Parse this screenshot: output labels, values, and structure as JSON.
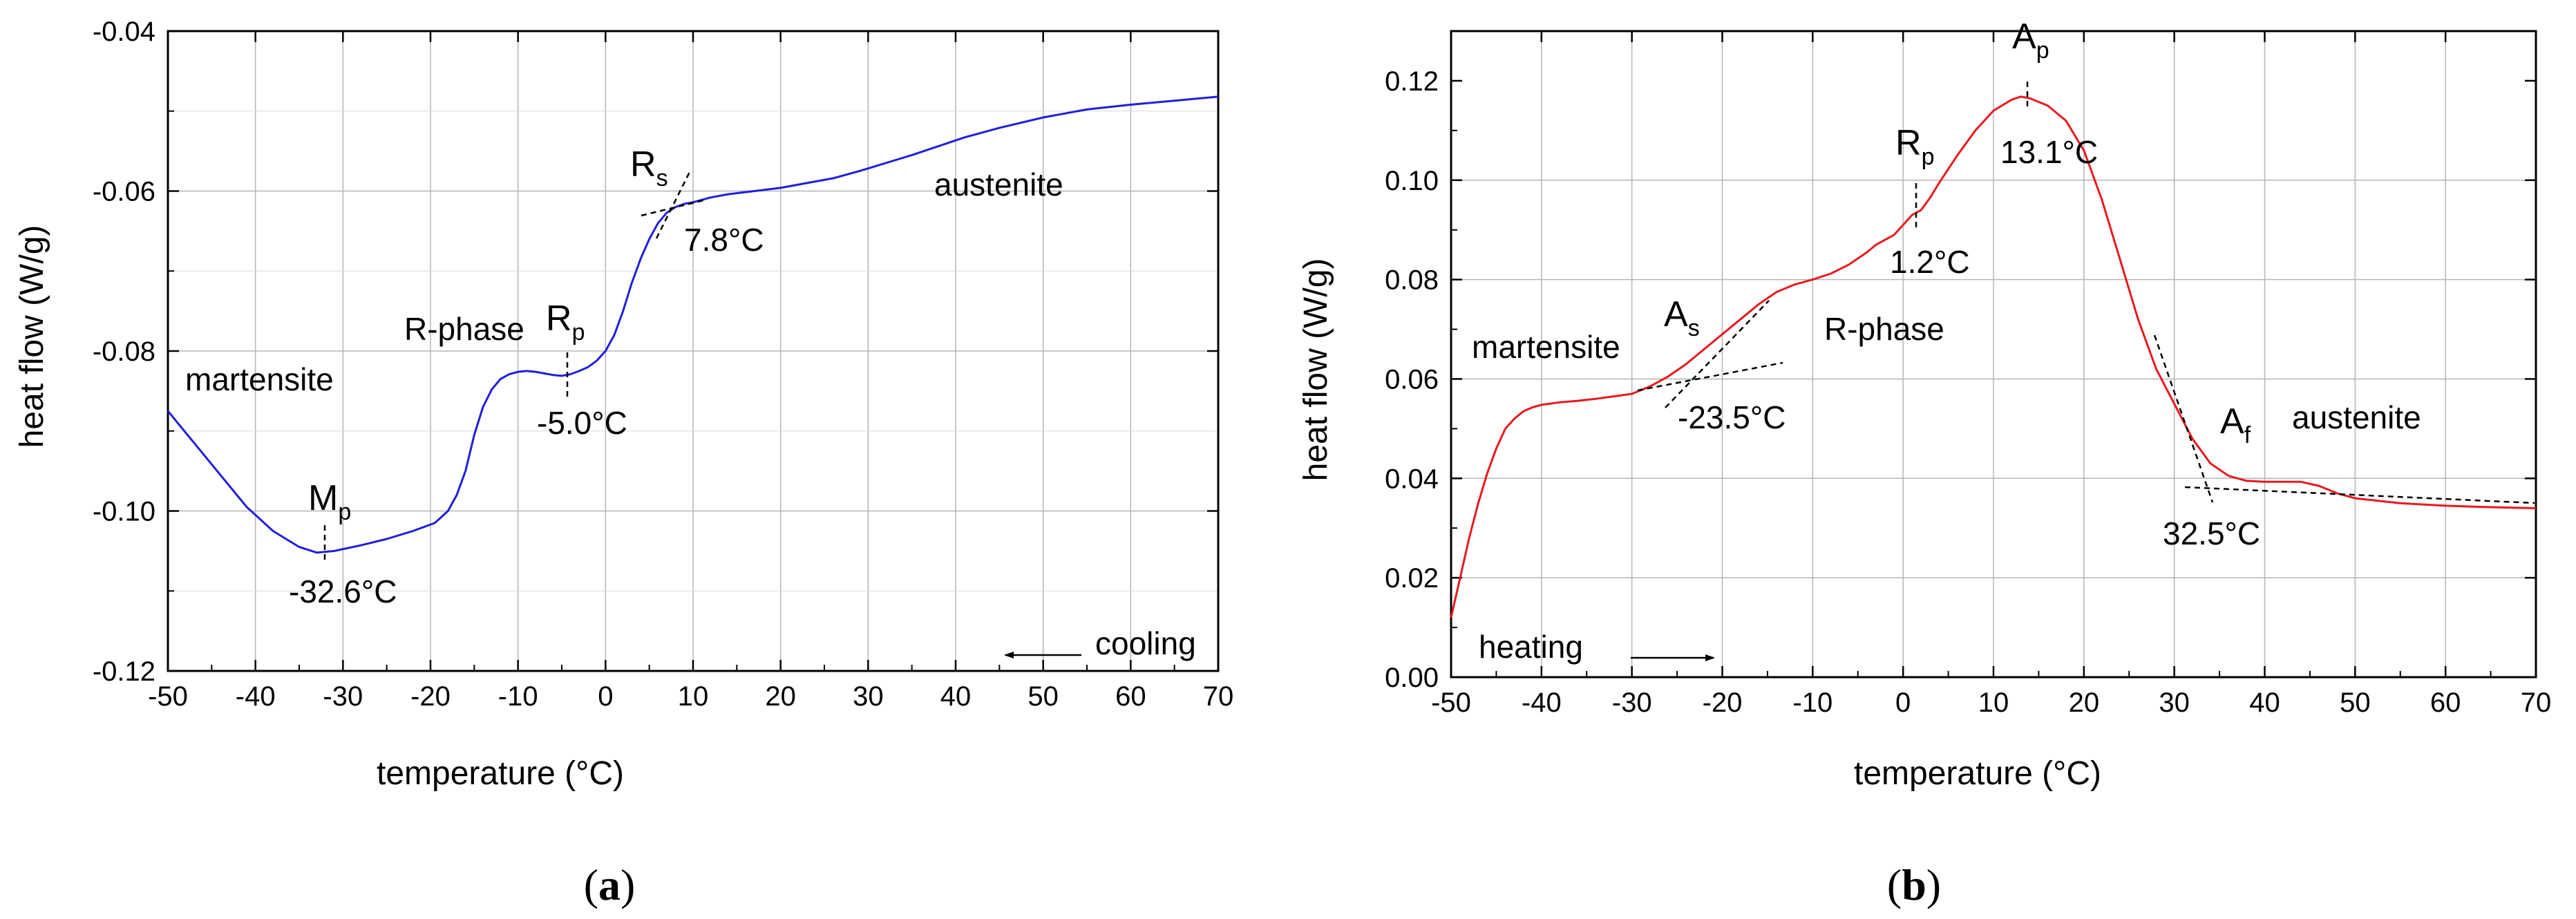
{
  "chart_data": [
    {
      "id": "a",
      "type": "line",
      "panel_label_open": "(",
      "panel_label_letter": "a",
      "panel_label_close": ")",
      "xlabel": "temperature (°C)",
      "ylabel": "heat flow (W/g)",
      "xlim": [
        -50,
        70
      ],
      "ylim": [
        -0.12,
        -0.04
      ],
      "xticks": [
        -50,
        -40,
        -30,
        -20,
        -10,
        0,
        10,
        20,
        30,
        40,
        50,
        60,
        70
      ],
      "xtick_labels": [
        "-50",
        "-40",
        "-30",
        "-20",
        "-10",
        "0",
        "10",
        "20",
        "30",
        "40",
        "50",
        "60",
        "70"
      ],
      "yticks": [
        -0.12,
        -0.1,
        -0.08,
        -0.06,
        -0.04
      ],
      "ytick_labels": [
        "-0.12",
        "-0.10",
        "-0.08",
        "-0.06",
        "-0.04"
      ],
      "grid": true,
      "series": [
        {
          "name": "cooling curve",
          "color": "#1f1fdc",
          "x": [
            -50,
            -47,
            -44,
            -41,
            -38,
            -35,
            -33,
            -31,
            -28,
            -25,
            -22,
            -19.5,
            -18,
            -17,
            -16,
            -15,
            -14,
            -13,
            -12,
            -11,
            -10,
            -9,
            -8,
            -7,
            -6,
            -5,
            -4,
            -3,
            -2,
            -1,
            0,
            1,
            2,
            3,
            4,
            5,
            6,
            7,
            8,
            9,
            10,
            12,
            14,
            17,
            20,
            23,
            26,
            29,
            32,
            35,
            38,
            41,
            45,
            50,
            55,
            60,
            65,
            70
          ],
          "y": [
            -0.0875,
            -0.0915,
            -0.0955,
            -0.0995,
            -0.1025,
            -0.1045,
            -0.1052,
            -0.105,
            -0.1043,
            -0.1035,
            -0.1025,
            -0.1015,
            -0.1,
            -0.098,
            -0.095,
            -0.0905,
            -0.087,
            -0.0848,
            -0.0835,
            -0.0829,
            -0.0826,
            -0.0825,
            -0.0826,
            -0.0828,
            -0.083,
            -0.0831,
            -0.0829,
            -0.0825,
            -0.082,
            -0.0812,
            -0.08,
            -0.078,
            -0.075,
            -0.0715,
            -0.0685,
            -0.066,
            -0.064,
            -0.0627,
            -0.062,
            -0.0616,
            -0.0614,
            -0.0608,
            -0.0604,
            -0.06,
            -0.0596,
            -0.059,
            -0.0584,
            -0.0575,
            -0.0565,
            -0.0555,
            -0.0544,
            -0.0533,
            -0.0521,
            -0.0508,
            -0.0498,
            -0.0492,
            -0.0487,
            -0.0482
          ]
        }
      ],
      "annotations": {
        "martensite": "martensite",
        "r_phase": "R-phase",
        "austenite": "austenite",
        "mp_main": "M",
        "mp_sub": "p",
        "mp_temp": "-32.6°C",
        "rp_main": "R",
        "rp_sub": "p",
        "rp_temp": "-5.0°C",
        "rs_main": "R",
        "rs_sub": "s",
        "rs_temp": "7.8°C",
        "cooling": "cooling"
      }
    },
    {
      "id": "b",
      "type": "line",
      "panel_label_open": "(",
      "panel_label_letter": "b",
      "panel_label_close": ")",
      "xlabel": "temperature (°C)",
      "ylabel": "heat flow (W/g)",
      "xlim": [
        -50,
        70
      ],
      "ylim": [
        0.0,
        0.13
      ],
      "xticks": [
        -50,
        -40,
        -30,
        -20,
        -10,
        0,
        10,
        20,
        30,
        40,
        50,
        60,
        70
      ],
      "xtick_labels": [
        "-50",
        "-40",
        "-30",
        "-20",
        "-10",
        "0",
        "10",
        "20",
        "30",
        "40",
        "50",
        "60",
        "70"
      ],
      "yticks": [
        0.0,
        0.02,
        0.04,
        0.06,
        0.08,
        0.1,
        0.12
      ],
      "ytick_labels": [
        "0.00",
        "0.02",
        "0.04",
        "0.06",
        "0.08",
        "0.10",
        "0.12"
      ],
      "grid": true,
      "series": [
        {
          "name": "heating curve",
          "color": "#e8191e",
          "x": [
            -50,
            -49,
            -48,
            -47,
            -46,
            -45,
            -44,
            -43,
            -42,
            -41,
            -40,
            -38,
            -36,
            -34,
            -32,
            -30,
            -28,
            -26,
            -24,
            -22,
            -20,
            -18,
            -16,
            -14,
            -12,
            -10,
            -8,
            -6,
            -4,
            -3,
            -2,
            -1,
            0,
            1,
            2,
            3,
            4,
            6,
            8,
            10,
            12,
            13,
            14,
            16,
            18,
            20,
            22,
            24,
            26,
            28,
            30,
            32,
            34,
            36,
            38,
            40,
            42,
            44,
            46,
            48,
            50,
            55,
            60,
            65,
            70
          ],
          "y": [
            0.012,
            0.02,
            0.028,
            0.035,
            0.041,
            0.046,
            0.05,
            0.052,
            0.0535,
            0.0543,
            0.0548,
            0.0553,
            0.0556,
            0.056,
            0.0565,
            0.057,
            0.0585,
            0.0605,
            0.063,
            0.066,
            0.069,
            0.072,
            0.075,
            0.0775,
            0.079,
            0.08,
            0.0812,
            0.083,
            0.0855,
            0.087,
            0.088,
            0.089,
            0.091,
            0.093,
            0.094,
            0.0965,
            0.0995,
            0.105,
            0.11,
            0.114,
            0.1162,
            0.1168,
            0.1165,
            0.115,
            0.112,
            0.106,
            0.096,
            0.084,
            0.072,
            0.062,
            0.055,
            0.048,
            0.043,
            0.0405,
            0.0395,
            0.0393,
            0.0393,
            0.0393,
            0.0385,
            0.037,
            0.036,
            0.035,
            0.0345,
            0.0342,
            0.034
          ]
        }
      ],
      "annotations": {
        "martensite": "martensite",
        "r_phase": "R-phase",
        "austenite": "austenite",
        "as_main": "A",
        "as_sub": "s",
        "as_temp": "-23.5°C",
        "rp_main": "R",
        "rp_sub": "p",
        "rp_temp": "1.2°C",
        "ap_main": "A",
        "ap_sub": "p",
        "ap_temp": "13.1°C",
        "af_main": "A",
        "af_sub": "f",
        "af_temp": "32.5°C",
        "heating": "heating"
      }
    }
  ]
}
